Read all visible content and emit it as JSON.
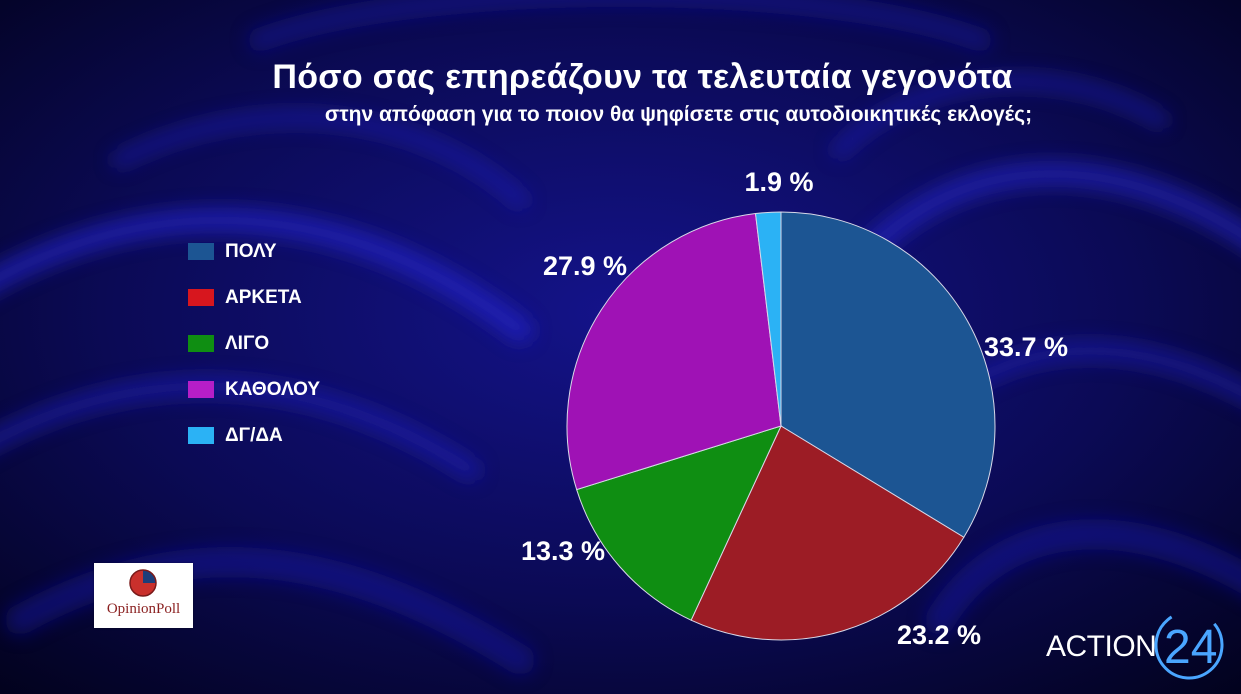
{
  "title": "Πόσο σας επηρεάζουν τα τελευταία γεγονότα",
  "subtitle": "στην απόφαση για το ποιον θα ψηφίσετε στις αυτοδιοικητικές εκλογές;",
  "chart_data": {
    "type": "pie",
    "title": "Πόσο σας επηρεάζουν τα τελευταία γεγονότα",
    "subtitle": "στην απόφαση για το ποιον θα ψηφίσετε στις αυτοδιοικητικές εκλογές;",
    "legend_position": "left",
    "start": "top, clockwise",
    "slices": [
      {
        "label": "ΠΟΛΥ",
        "value": 33.7,
        "display": "33.7 %",
        "color": "#1c5593"
      },
      {
        "label": "ΑΡΚΕΤΑ",
        "value": 23.2,
        "display": "23.2 %",
        "color": "#9c1c25"
      },
      {
        "label": "ΛΙΓΟ",
        "value": 13.3,
        "display": "13.3 %",
        "color": "#0f8e12"
      },
      {
        "label": "ΚΑΘΟΛΟΥ",
        "value": 27.9,
        "display": "27.9 %",
        "color": "#9f12b5"
      },
      {
        "label": "ΔΓ/ΔΑ",
        "value": 1.9,
        "display": "1.9 %",
        "color": "#2bb2f5"
      }
    ]
  },
  "legend": [
    {
      "label": "ΠΟΛΥ",
      "color": "#1c5593"
    },
    {
      "label": "ΑΡΚΕΤΑ",
      "color": "#d7161e"
    },
    {
      "label": "ΛΙΓΟ",
      "color": "#0f8e12"
    },
    {
      "label": "ΚΑΘΟΛΟΥ",
      "color": "#b61ec8"
    },
    {
      "label": "ΔΓ/ΔΑ",
      "color": "#2bb2f5"
    }
  ],
  "logos": {
    "opinionpoll": "OpinionPoll",
    "action24_text": "ACTION",
    "action24_number": "24"
  },
  "colors": {
    "background": "#0b0a55",
    "text": "#ffffff",
    "action24_accent": "#4aa6ff"
  }
}
